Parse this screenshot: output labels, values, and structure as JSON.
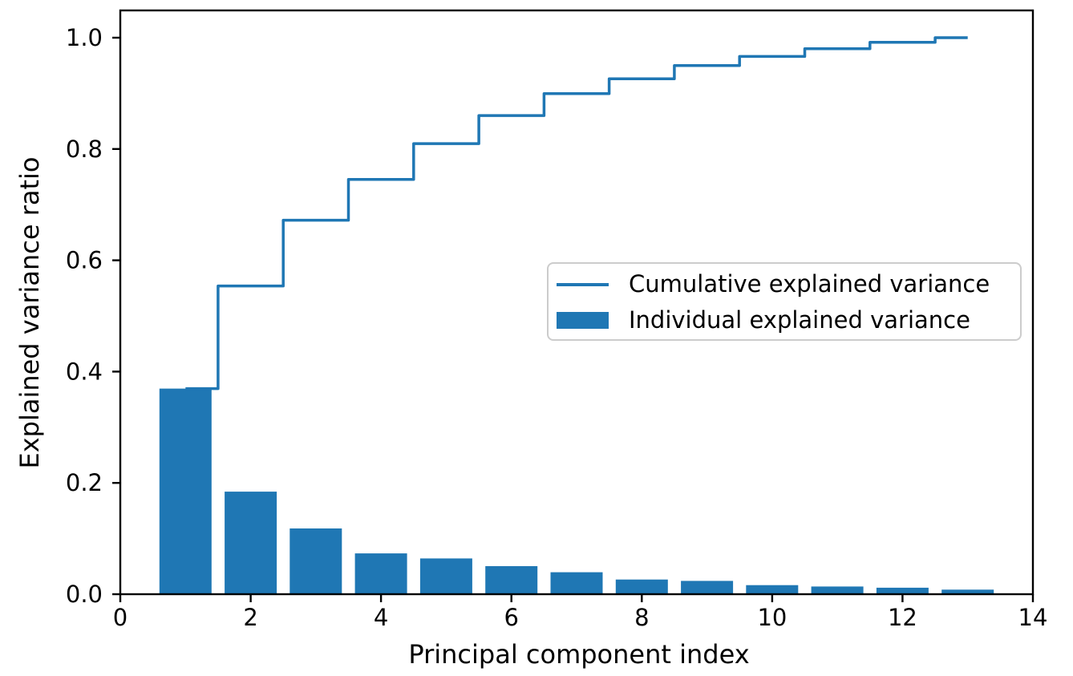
{
  "chart_data": {
    "type": "bar",
    "title": "",
    "xlabel": "Principal component index",
    "ylabel": "Explained variance ratio",
    "x": [
      1,
      2,
      3,
      4,
      5,
      6,
      7,
      8,
      9,
      10,
      11,
      12,
      13
    ],
    "series": [
      {
        "name": "Cumulative explained variance",
        "type": "step-mid",
        "values": [
          0.3695,
          0.5539,
          0.672,
          0.7454,
          0.8096,
          0.8601,
          0.8996,
          0.9261,
          0.95,
          0.9663,
          0.9801,
          0.9918,
          1.0
        ]
      },
      {
        "name": "Individual explained variance",
        "type": "bar",
        "values": [
          0.3695,
          0.1843,
          0.1182,
          0.0733,
          0.0642,
          0.0505,
          0.0395,
          0.0264,
          0.0239,
          0.0163,
          0.0138,
          0.0117,
          0.0082
        ]
      }
    ],
    "bar_width_units": 0.8,
    "xlim": [
      0,
      14
    ],
    "ylim": [
      0,
      1.049
    ],
    "xticks": [
      0,
      2,
      4,
      6,
      8,
      10,
      12,
      14
    ],
    "xtick_labels": [
      "0",
      "2",
      "4",
      "6",
      "8",
      "10",
      "12",
      "14"
    ],
    "yticks": [
      0.0,
      0.2,
      0.4,
      0.6,
      0.8,
      1.0
    ],
    "ytick_labels": [
      "0.0",
      "0.2",
      "0.4",
      "0.6",
      "0.8",
      "1.0"
    ],
    "grid": false,
    "legend_position": "center right",
    "colors": {
      "accent": "#1f77b4",
      "axis": "#000000",
      "legend_border": "#cccccc",
      "background": "#ffffff"
    }
  }
}
